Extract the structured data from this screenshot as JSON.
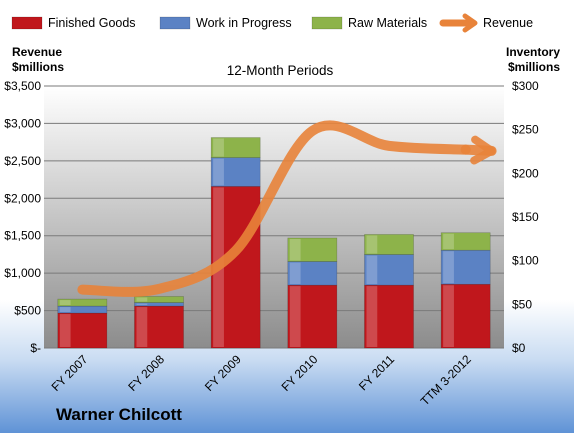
{
  "chart_data": {
    "type": "bar",
    "stacked": true,
    "title": "12-Month Periods",
    "company": "Warner Chilcott",
    "categories": [
      "FY 2007",
      "FY 2008",
      "FY 2009",
      "FY 2010",
      "FY 2011",
      "TTM 3-2012"
    ],
    "left_axis": {
      "title_lines": [
        "Revenue",
        "$millions"
      ],
      "min": 0,
      "max": 3500,
      "step": 500,
      "tick_labels": [
        "$-",
        "$500",
        "$1,000",
        "$1,500",
        "$2,000",
        "$2,500",
        "$3,000",
        "$3,500"
      ]
    },
    "right_axis": {
      "title_lines": [
        "Inventory",
        "$millions"
      ],
      "min": 0,
      "max": 300,
      "step": 50,
      "tick_labels": [
        "$0",
        "$50",
        "$100",
        "$150",
        "$200",
        "$250",
        "$300"
      ]
    },
    "series": [
      {
        "name": "Finished Goods",
        "axis": "right",
        "color": "#c0171c",
        "values": [
          40,
          48,
          185,
          72,
          72,
          73
        ]
      },
      {
        "name": "Work in Progress",
        "axis": "right",
        "color": "#5b82c4",
        "values": [
          8,
          4,
          33,
          27,
          35,
          39
        ]
      },
      {
        "name": "Raw Materials",
        "axis": "right",
        "color": "#8db34a",
        "values": [
          8,
          7,
          23,
          27,
          23,
          20
        ]
      },
      {
        "name": "Revenue",
        "axis": "left",
        "type": "line",
        "color": "#e8833a",
        "values": [
          780,
          790,
          1300,
          2900,
          2700,
          2650
        ]
      }
    ],
    "legend_position": "top",
    "grid": true
  }
}
